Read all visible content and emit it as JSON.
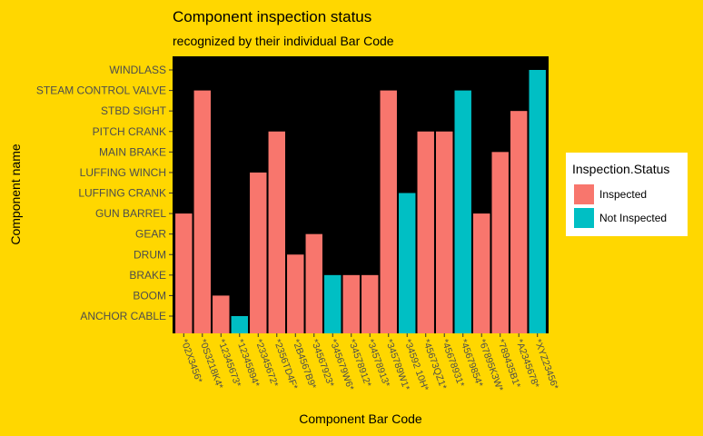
{
  "chart_data": {
    "type": "bar",
    "title": "Component inspection status",
    "subtitle": "recognized by their individual Bar Code",
    "xlabel": "Component Bar Code",
    "ylabel": "Component name",
    "background_color": "#FFD700",
    "panel_color": "#000000",
    "y_categories": [
      "ANCHOR CABLE",
      "BOOM",
      "BRAKE",
      "DRUM",
      "GEAR",
      "GUN BARREL",
      "LUFFING CRANK",
      "LUFFING WINCH",
      "MAIN BRAKE",
      "PITCH CRANK",
      "STBD SIGHT",
      "STEAM CONTROL VALVE",
      "WINDLASS"
    ],
    "x": [
      "*02X3456*",
      "*0S3218K4*",
      "*12345673*",
      "*12345894*",
      "*23345672*",
      "*2356TD4F*",
      "*2B4567B9*",
      "*34567923*",
      "*345679W6*",
      "*34578912*",
      "*34578913*",
      "*345789W1*",
      "*34592 10H*",
      "*45673QZ1*",
      "*45678931*",
      "*45679854*",
      "*67895K3W*",
      "*789435B1*",
      "*A2345678*",
      "*XYZ23456*"
    ],
    "values": [
      "GUN BARREL",
      "STEAM CONTROL VALVE",
      "BOOM",
      "ANCHOR CABLE",
      "LUFFING WINCH",
      "PITCH CRANK",
      "DRUM",
      "GEAR",
      "BRAKE",
      "BRAKE",
      "BRAKE",
      "STEAM CONTROL VALVE",
      "LUFFING CRANK",
      "PITCH CRANK",
      "PITCH CRANK",
      "STEAM CONTROL VALVE",
      "GUN BARREL",
      "MAIN BRAKE",
      "STBD SIGHT",
      "WINDLASS"
    ],
    "status": [
      "Inspected",
      "Inspected",
      "Inspected",
      "Not Inspected",
      "Inspected",
      "Inspected",
      "Inspected",
      "Inspected",
      "Not Inspected",
      "Inspected",
      "Inspected",
      "Inspected",
      "Not Inspected",
      "Inspected",
      "Inspected",
      "Not Inspected",
      "Inspected",
      "Inspected",
      "Inspected",
      "Not Inspected"
    ],
    "legend": {
      "title": "Inspection.Status",
      "position": "right",
      "entries": [
        {
          "label": "Inspected",
          "color": "#F8766D"
        },
        {
          "label": "Not Inspected",
          "color": "#00BFC4"
        }
      ]
    },
    "grid": false
  }
}
